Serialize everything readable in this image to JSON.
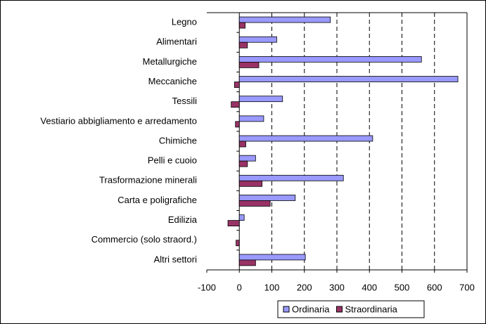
{
  "chart_data": {
    "type": "bar",
    "orientation": "horizontal",
    "categories": [
      "Legno",
      "Alimentari",
      "Metallurgiche",
      "Meccaniche",
      "Tessili",
      "Vestiario abbigliamento e arredamento",
      "Chimiche",
      "Pelli e cuoio",
      "Trasformazione minerali",
      "Carta e poligrafiche",
      "Edilizia",
      "Commercio (solo straord.)",
      "Altri settori"
    ],
    "series": [
      {
        "name": "Ordinaria",
        "color": "#9999ff",
        "values": [
          280,
          115,
          560,
          672,
          133,
          75,
          410,
          50,
          320,
          172,
          15,
          null,
          203
        ]
      },
      {
        "name": "Straordinaria",
        "color": "#993366",
        "values": [
          18,
          25,
          60,
          -15,
          -25,
          -12,
          20,
          25,
          70,
          95,
          -35,
          -10,
          50
        ]
      }
    ],
    "xlim": [
      -100,
      700
    ],
    "xticks": [
      -100,
      0,
      100,
      200,
      300,
      400,
      500,
      600,
      700
    ],
    "grid": true,
    "legend": "bottom"
  }
}
